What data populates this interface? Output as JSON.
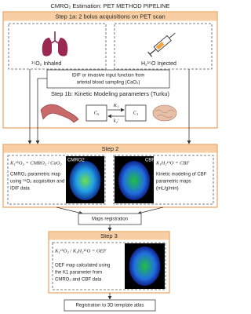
{
  "title": "CMRO₂ Estimation: PET METHOD PIPELINE",
  "step1a": {
    "header": "Step 1a: 2 bolus acquisitions on PET scan",
    "left_label": "¹⁵O₂ Inhaled",
    "right_label": "H₂¹⁵O Injected"
  },
  "idif": [
    "IDIF or invasive input function from",
    "arterial blood sampling (CaO₂)"
  ],
  "step1b": {
    "header": "Step 1b: Kinetic Modeling parameters (Turku)",
    "c0": "C₀",
    "c1": "C₁",
    "k1": "K₁",
    "k2": "k₂'"
  },
  "step2": {
    "header": "Step 2",
    "left_formula": "K₁¹⁵O₂ = CMRO₂ / CaO₂",
    "left_lines": [
      "CMRO₂ parametric map",
      "using ¹⁵O₂ acquisition and",
      "IDIF data"
    ],
    "left_map": "CMRO2",
    "right_formula": "K₁H₂¹⁵O = CBF",
    "right_lines": [
      "Kinetic modeling of CBF",
      "parametric maps",
      "(mL/g/min)"
    ],
    "right_map": "CBF"
  },
  "maps_registration": "Maps registration",
  "step3": {
    "header": "Step 3",
    "formula": "K₁¹⁵O₂ / K₁H₂¹⁵O = OEF",
    "lines": [
      "OEF map calculated using",
      "the K1 parameter from",
      "CMRO₂ and CBF data"
    ]
  },
  "final": "Registration to 3D template atlas"
}
